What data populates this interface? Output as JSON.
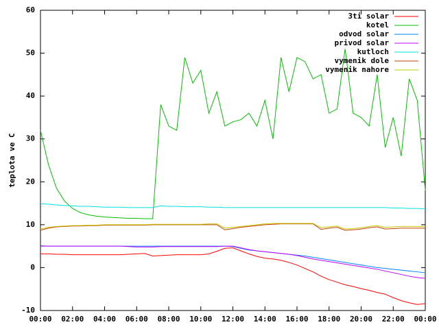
{
  "chart_data": {
    "type": "line",
    "y_label": "teplota ve C",
    "x": [
      0,
      0.5,
      1,
      1.5,
      2,
      2.5,
      3,
      3.5,
      4,
      4.5,
      5,
      5.5,
      6,
      6.5,
      7,
      7.5,
      8,
      8.5,
      9,
      9.5,
      10,
      10.5,
      11,
      11.5,
      12,
      12.5,
      13,
      13.5,
      14,
      14.5,
      15,
      15.5,
      16,
      16.5,
      17,
      17.5,
      18,
      18.5,
      19,
      19.5,
      20,
      20.5,
      21,
      21.5,
      22,
      22.5,
      23,
      23.5,
      24
    ],
    "series": [
      {
        "name": "3ti solar",
        "color": "#ff0000",
        "values": [
          3.2,
          3.2,
          3.1,
          3.1,
          3,
          3,
          3,
          3,
          3,
          3,
          3,
          3.1,
          3.2,
          3.3,
          2.7,
          2.8,
          2.9,
          3,
          3,
          3,
          3,
          3.2,
          3.8,
          4.5,
          4.6,
          3.9,
          3.2,
          2.6,
          2.2,
          2,
          1.7,
          1.2,
          0.6,
          -0.2,
          -1,
          -2,
          -2.8,
          -3.4,
          -4,
          -4.4,
          -4.9,
          -5.3,
          -5.8,
          -6.2,
          -7,
          -7.7,
          -8.2,
          -8.6,
          -8.4
        ]
      },
      {
        "name": "kotel",
        "color": "#00c000",
        "values": [
          32,
          24,
          18.5,
          15.5,
          13.8,
          12.8,
          12.3,
          12,
          11.8,
          11.7,
          11.6,
          11.5,
          11.5,
          11.4,
          11.4,
          38,
          33,
          32,
          49,
          43,
          46,
          36,
          41,
          33,
          34,
          34.5,
          36,
          33,
          39,
          30,
          49,
          41,
          49,
          48,
          44,
          45,
          36,
          37,
          51,
          36,
          35,
          33,
          45,
          28,
          35,
          26,
          44,
          39,
          18
        ]
      },
      {
        "name": "odvod solar",
        "color": "#0080ff",
        "values": [
          5.1,
          5,
          5,
          5,
          5,
          5,
          5,
          5,
          5,
          5,
          5,
          5,
          5,
          5,
          5,
          5,
          5,
          5,
          5,
          5,
          5,
          5,
          5,
          5,
          4.9,
          4.5,
          4.1,
          3.9,
          3.7,
          3.5,
          3.3,
          3.1,
          2.9,
          2.7,
          2.4,
          2.1,
          1.8,
          1.5,
          1.2,
          0.9,
          0.6,
          0.3,
          0,
          -0.2,
          -0.4,
          -0.6,
          -0.8,
          -1,
          -1.2
        ]
      },
      {
        "name": "privod solar",
        "color": "#c000ff",
        "values": [
          5,
          5,
          5,
          5,
          5,
          5,
          5,
          5,
          5,
          5,
          5,
          4.9,
          4.8,
          4.8,
          4.8,
          4.9,
          4.9,
          4.9,
          4.9,
          4.9,
          4.9,
          4.9,
          4.9,
          5,
          5,
          4.6,
          4.2,
          3.9,
          3.7,
          3.5,
          3.3,
          3.1,
          2.8,
          2.4,
          2,
          1.7,
          1.4,
          1.1,
          0.8,
          0.5,
          0.2,
          -0.1,
          -0.4,
          -0.8,
          -1.2,
          -1.6,
          -2,
          -2.3,
          -2.5
        ]
      },
      {
        "name": "kutloch",
        "color": "#00e0e0",
        "values": [
          14.9,
          14.8,
          14.6,
          14.5,
          14.4,
          14.3,
          14.3,
          14.2,
          14.1,
          14.1,
          14.1,
          14,
          14,
          14,
          14,
          14.4,
          14.3,
          14.3,
          14.2,
          14.2,
          14.2,
          14.1,
          14.1,
          14,
          14,
          14,
          14,
          14,
          14,
          14,
          14,
          14,
          14,
          14,
          14,
          14,
          14,
          14,
          14,
          14,
          14,
          14,
          14,
          14,
          13.9,
          13.9,
          13.8,
          13.8,
          13.7
        ]
      },
      {
        "name": "vymenik dole",
        "color": "#c04000",
        "values": [
          8.7,
          9.2,
          9.5,
          9.6,
          9.7,
          9.7,
          9.8,
          9.8,
          9.9,
          9.9,
          9.9,
          9.9,
          9.9,
          9.9,
          10,
          10,
          10,
          10,
          10,
          10,
          10,
          10,
          10,
          8.8,
          9.1,
          9.4,
          9.6,
          9.8,
          10,
          10.1,
          10.2,
          10.2,
          10.2,
          10.2,
          10.2,
          8.9,
          9.2,
          9.4,
          8.7,
          8.8,
          9,
          9.3,
          9.5,
          9,
          9.1,
          9.2,
          9.2,
          9.2,
          9.2
        ]
      },
      {
        "name": "vymenik nahore",
        "color": "#c8c800",
        "values": [
          9,
          9.4,
          9.6,
          9.7,
          9.8,
          9.8,
          9.9,
          9.9,
          10,
          10,
          10,
          10,
          10,
          10,
          10.1,
          10.1,
          10.1,
          10.1,
          10.1,
          10.1,
          10.1,
          10.2,
          10.2,
          9.2,
          9.4,
          9.6,
          9.8,
          10,
          10.2,
          10.3,
          10.3,
          10.3,
          10.3,
          10.3,
          10.3,
          9.3,
          9.5,
          9.7,
          9,
          9.1,
          9.3,
          9.6,
          9.8,
          9.4,
          9.5,
          9.6,
          9.6,
          9.6,
          9.6
        ]
      }
    ],
    "xlim": [
      0,
      24
    ],
    "xticks": [
      {
        "value": 0,
        "label": "00:00"
      },
      {
        "value": 2,
        "label": "02:00"
      },
      {
        "value": 4,
        "label": "04:00"
      },
      {
        "value": 6,
        "label": "06:00"
      },
      {
        "value": 8,
        "label": "08:00"
      },
      {
        "value": 10,
        "label": "10:00"
      },
      {
        "value": 12,
        "label": "12:00"
      },
      {
        "value": 14,
        "label": "14:00"
      },
      {
        "value": 16,
        "label": "16:00"
      },
      {
        "value": 18,
        "label": "18:00"
      },
      {
        "value": 20,
        "label": "20:00"
      },
      {
        "value": 22,
        "label": "22:00"
      },
      {
        "value": 24,
        "label": "00:00"
      }
    ],
    "ylim": [
      -10,
      60
    ],
    "yticks": [
      -10,
      0,
      10,
      20,
      30,
      40,
      50,
      60
    ],
    "grid": false,
    "legend": "top-right"
  }
}
